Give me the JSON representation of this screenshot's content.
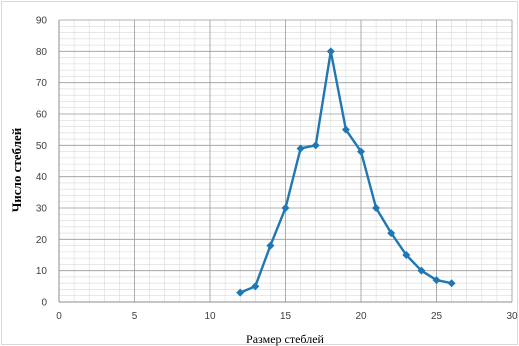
{
  "chart_data": {
    "type": "line",
    "title": "",
    "xlabel": "Размер стеблей",
    "ylabel": "Число стеблей",
    "xlim": [
      0,
      30
    ],
    "ylim": [
      0,
      90
    ],
    "x_ticks": [
      0,
      5,
      10,
      15,
      20,
      25,
      30
    ],
    "y_ticks": [
      0,
      10,
      20,
      30,
      40,
      50,
      60,
      70,
      80,
      90
    ],
    "x_minor_step": 1,
    "y_minor_step": 2,
    "grid": true,
    "legend": "none",
    "series": [
      {
        "color": "#1f78b4",
        "marker": "diamond",
        "x": [
          12,
          13,
          14,
          15,
          16,
          17,
          18,
          19,
          20,
          21,
          22,
          23,
          24,
          25,
          26
        ],
        "y": [
          3,
          5,
          18,
          30,
          49,
          50,
          80,
          55,
          48,
          30,
          22,
          15,
          10,
          7,
          6
        ]
      }
    ]
  }
}
